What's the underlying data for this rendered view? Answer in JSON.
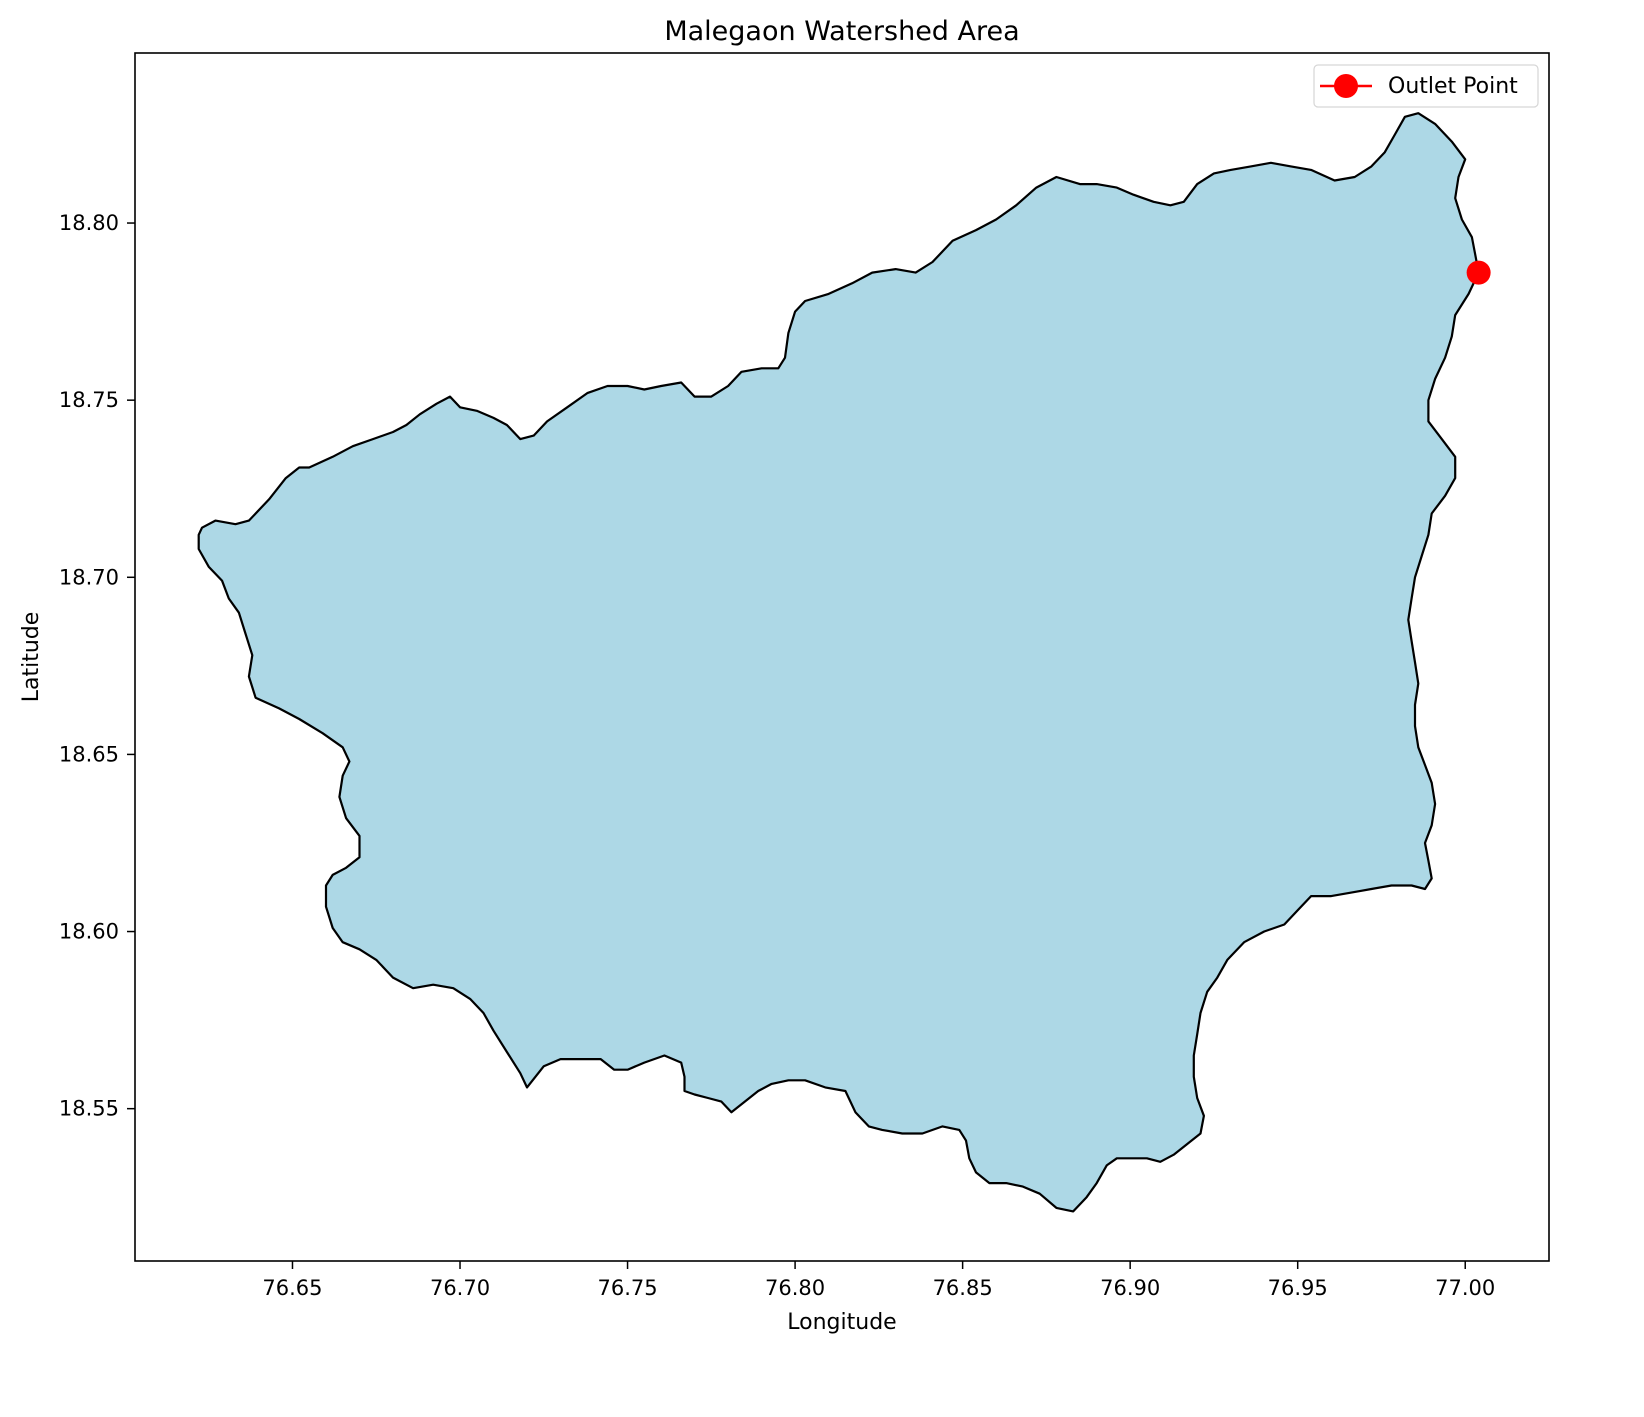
{
  "chart_data": {
    "type": "map",
    "title": "Malegaon Watershed Area",
    "xlabel": "Longitude",
    "ylabel": "Latitude",
    "xlim": [
      76.603,
      77.025
    ],
    "ylim": [
      18.507,
      18.848
    ],
    "xticks": [
      76.65,
      76.7,
      76.75,
      76.8,
      76.85,
      76.9,
      76.95,
      77.0
    ],
    "xtick_labels": [
      "76.65",
      "76.70",
      "76.75",
      "76.80",
      "76.85",
      "76.90",
      "76.95",
      "77.00"
    ],
    "yticks": [
      18.55,
      18.6,
      18.65,
      18.7,
      18.75,
      18.8
    ],
    "ytick_labels": [
      "18.55",
      "18.60",
      "18.65",
      "18.70",
      "18.75",
      "18.80"
    ],
    "grid": false,
    "legend_position": "top-right",
    "legend": [
      {
        "label": "Outlet Point",
        "color": "#ff0000",
        "marker": "circle"
      }
    ],
    "outlet_point": {
      "name": "Outlet Point",
      "x": 77.004,
      "y": 18.786
    },
    "watershed": {
      "fill": "#add8e6",
      "edge": "#000000",
      "boundary": [
        [
          76.623,
          18.714
        ],
        [
          76.627,
          18.716
        ],
        [
          76.633,
          18.715
        ],
        [
          76.637,
          18.716
        ],
        [
          76.643,
          18.722
        ],
        [
          76.648,
          18.728
        ],
        [
          76.652,
          18.731
        ],
        [
          76.655,
          18.731
        ],
        [
          76.662,
          18.734
        ],
        [
          76.668,
          18.737
        ],
        [
          76.674,
          18.739
        ],
        [
          76.68,
          18.741
        ],
        [
          76.684,
          18.743
        ],
        [
          76.688,
          18.746
        ],
        [
          76.693,
          18.749
        ],
        [
          76.697,
          18.751
        ],
        [
          76.7,
          18.748
        ],
        [
          76.705,
          18.747
        ],
        [
          76.71,
          18.745
        ],
        [
          76.714,
          18.743
        ],
        [
          76.718,
          18.739
        ],
        [
          76.722,
          18.74
        ],
        [
          76.726,
          18.744
        ],
        [
          76.732,
          18.748
        ],
        [
          76.738,
          18.752
        ],
        [
          76.744,
          18.754
        ],
        [
          76.75,
          18.754
        ],
        [
          76.755,
          18.753
        ],
        [
          76.76,
          18.754
        ],
        [
          76.766,
          18.755
        ],
        [
          76.77,
          18.751
        ],
        [
          76.775,
          18.751
        ],
        [
          76.78,
          18.754
        ],
        [
          76.784,
          18.758
        ],
        [
          76.79,
          18.759
        ],
        [
          76.795,
          18.759
        ],
        [
          76.797,
          18.762
        ],
        [
          76.798,
          18.769
        ],
        [
          76.8,
          18.775
        ],
        [
          76.803,
          18.778
        ],
        [
          76.81,
          18.78
        ],
        [
          76.817,
          18.783
        ],
        [
          76.823,
          18.786
        ],
        [
          76.83,
          18.787
        ],
        [
          76.836,
          18.786
        ],
        [
          76.841,
          18.789
        ],
        [
          76.847,
          18.795
        ],
        [
          76.854,
          18.798
        ],
        [
          76.86,
          18.801
        ],
        [
          76.866,
          18.805
        ],
        [
          76.872,
          18.81
        ],
        [
          76.878,
          18.813
        ],
        [
          76.885,
          18.811
        ],
        [
          76.89,
          18.811
        ],
        [
          76.896,
          18.81
        ],
        [
          76.901,
          18.808
        ],
        [
          76.907,
          18.806
        ],
        [
          76.912,
          18.805
        ],
        [
          76.916,
          18.806
        ],
        [
          76.92,
          18.811
        ],
        [
          76.925,
          18.814
        ],
        [
          76.93,
          18.815
        ],
        [
          76.936,
          18.816
        ],
        [
          76.942,
          18.817
        ],
        [
          76.948,
          18.816
        ],
        [
          76.954,
          18.815
        ],
        [
          76.961,
          18.812
        ],
        [
          76.967,
          18.813
        ],
        [
          76.972,
          18.816
        ],
        [
          76.976,
          18.82
        ],
        [
          76.979,
          18.825
        ],
        [
          76.982,
          18.83
        ],
        [
          76.986,
          18.831
        ],
        [
          76.991,
          18.828
        ],
        [
          76.996,
          18.823
        ],
        [
          77.0,
          18.818
        ],
        [
          76.998,
          18.813
        ],
        [
          76.997,
          18.807
        ],
        [
          76.999,
          18.801
        ],
        [
          77.002,
          18.796
        ],
        [
          77.003,
          18.791
        ],
        [
          77.004,
          18.786
        ],
        [
          77.001,
          18.78
        ],
        [
          76.997,
          18.774
        ],
        [
          76.996,
          18.768
        ],
        [
          76.994,
          18.762
        ],
        [
          76.991,
          18.756
        ],
        [
          76.989,
          18.75
        ],
        [
          76.989,
          18.744
        ],
        [
          76.993,
          18.739
        ],
        [
          76.997,
          18.734
        ],
        [
          76.997,
          18.728
        ],
        [
          76.994,
          18.723
        ],
        [
          76.99,
          18.718
        ],
        [
          76.989,
          18.712
        ],
        [
          76.987,
          18.706
        ],
        [
          76.985,
          18.7
        ],
        [
          76.984,
          18.694
        ],
        [
          76.983,
          18.688
        ],
        [
          76.984,
          18.682
        ],
        [
          76.985,
          18.676
        ],
        [
          76.986,
          18.67
        ],
        [
          76.985,
          18.664
        ],
        [
          76.985,
          18.658
        ],
        [
          76.986,
          18.652
        ],
        [
          76.988,
          18.647
        ],
        [
          76.99,
          18.642
        ],
        [
          76.991,
          18.636
        ],
        [
          76.99,
          18.63
        ],
        [
          76.988,
          18.625
        ],
        [
          76.989,
          18.62
        ],
        [
          76.99,
          18.615
        ],
        [
          76.988,
          18.612
        ],
        [
          76.984,
          18.613
        ],
        [
          76.978,
          18.613
        ],
        [
          76.972,
          18.612
        ],
        [
          76.966,
          18.611
        ],
        [
          76.96,
          18.61
        ],
        [
          76.954,
          18.61
        ],
        [
          76.95,
          18.606
        ],
        [
          76.946,
          18.602
        ],
        [
          76.94,
          18.6
        ],
        [
          76.934,
          18.597
        ],
        [
          76.929,
          18.592
        ],
        [
          76.926,
          18.587
        ],
        [
          76.923,
          18.583
        ],
        [
          76.921,
          18.577
        ],
        [
          76.92,
          18.571
        ],
        [
          76.919,
          18.565
        ],
        [
          76.919,
          18.559
        ],
        [
          76.92,
          18.553
        ],
        [
          76.922,
          18.548
        ],
        [
          76.921,
          18.543
        ],
        [
          76.917,
          18.54
        ],
        [
          76.913,
          18.537
        ],
        [
          76.909,
          18.535
        ],
        [
          76.905,
          18.536
        ],
        [
          76.9,
          18.536
        ],
        [
          76.896,
          18.536
        ],
        [
          76.893,
          18.534
        ],
        [
          76.89,
          18.529
        ],
        [
          76.887,
          18.525
        ],
        [
          76.883,
          18.521
        ],
        [
          76.878,
          18.522
        ],
        [
          76.873,
          18.526
        ],
        [
          76.868,
          18.528
        ],
        [
          76.863,
          18.529
        ],
        [
          76.858,
          18.529
        ],
        [
          76.854,
          18.532
        ],
        [
          76.852,
          18.536
        ],
        [
          76.851,
          18.541
        ],
        [
          76.849,
          18.544
        ],
        [
          76.844,
          18.545
        ],
        [
          76.838,
          18.543
        ],
        [
          76.832,
          18.543
        ],
        [
          76.826,
          18.544
        ],
        [
          76.822,
          18.545
        ],
        [
          76.818,
          18.549
        ],
        [
          76.815,
          18.555
        ],
        [
          76.809,
          18.556
        ],
        [
          76.803,
          18.558
        ],
        [
          76.798,
          18.558
        ],
        [
          76.793,
          18.557
        ],
        [
          76.789,
          18.555
        ],
        [
          76.785,
          18.552
        ],
        [
          76.781,
          18.549
        ],
        [
          76.778,
          18.552
        ],
        [
          76.774,
          18.553
        ],
        [
          76.77,
          18.554
        ],
        [
          76.767,
          18.555
        ],
        [
          76.767,
          18.559
        ],
        [
          76.766,
          18.563
        ],
        [
          76.761,
          18.565
        ],
        [
          76.755,
          18.563
        ],
        [
          76.75,
          18.561
        ],
        [
          76.746,
          18.561
        ],
        [
          76.742,
          18.564
        ],
        [
          76.736,
          18.564
        ],
        [
          76.73,
          18.564
        ],
        [
          76.725,
          18.562
        ],
        [
          76.72,
          18.556
        ],
        [
          76.718,
          18.56
        ],
        [
          76.714,
          18.566
        ],
        [
          76.71,
          18.572
        ],
        [
          76.707,
          18.577
        ],
        [
          76.703,
          18.581
        ],
        [
          76.698,
          18.584
        ],
        [
          76.692,
          18.585
        ],
        [
          76.686,
          18.584
        ],
        [
          76.68,
          18.587
        ],
        [
          76.675,
          18.592
        ],
        [
          76.67,
          18.595
        ],
        [
          76.665,
          18.597
        ],
        [
          76.662,
          18.601
        ],
        [
          76.66,
          18.607
        ],
        [
          76.66,
          18.613
        ],
        [
          76.662,
          18.616
        ],
        [
          76.666,
          18.618
        ],
        [
          76.67,
          18.621
        ],
        [
          76.67,
          18.627
        ],
        [
          76.666,
          18.632
        ],
        [
          76.664,
          18.638
        ],
        [
          76.665,
          18.644
        ],
        [
          76.667,
          18.648
        ],
        [
          76.665,
          18.652
        ],
        [
          76.659,
          18.656
        ],
        [
          76.652,
          18.66
        ],
        [
          76.646,
          18.663
        ],
        [
          76.639,
          18.666
        ],
        [
          76.637,
          18.672
        ],
        [
          76.638,
          18.678
        ],
        [
          76.636,
          18.684
        ],
        [
          76.634,
          18.69
        ],
        [
          76.631,
          18.694
        ],
        [
          76.629,
          18.699
        ],
        [
          76.625,
          18.703
        ],
        [
          76.622,
          18.708
        ],
        [
          76.622,
          18.712
        ]
      ]
    }
  }
}
